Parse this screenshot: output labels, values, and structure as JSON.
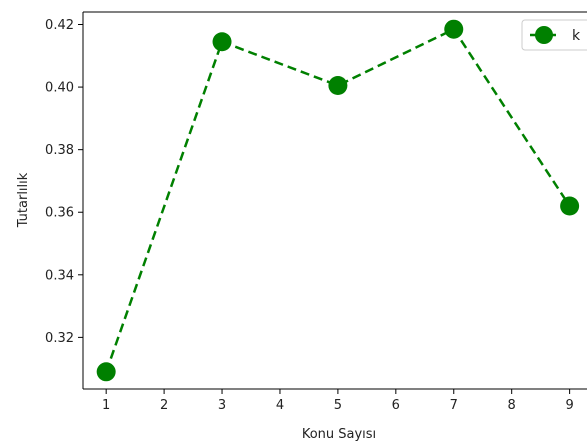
{
  "chart_data": {
    "type": "line",
    "xlabel": "Konu Sayısı",
    "ylabel": "Tutarlılık",
    "x": [
      1,
      3,
      5,
      7,
      9
    ],
    "series": [
      {
        "name": "k",
        "values": [
          0.309,
          0.4145,
          0.4005,
          0.4185,
          0.362
        ]
      }
    ],
    "xticks": [
      1,
      2,
      3,
      4,
      5,
      6,
      7,
      8,
      9
    ],
    "yticks": [
      0.32,
      0.34,
      0.36,
      0.38,
      0.4,
      0.42
    ],
    "ytick_labels": [
      "0.32",
      "0.34",
      "0.36",
      "0.38",
      "0.40",
      "0.42"
    ],
    "xlim": [
      0.6,
      9.3
    ],
    "ylim": [
      0.3035,
      0.424
    ],
    "grid": false,
    "legend_position": "top-right",
    "line_style": "dashed",
    "marker": "circle",
    "colors": {
      "series": "#008000",
      "axis": "#000000",
      "text": "#222222"
    }
  }
}
